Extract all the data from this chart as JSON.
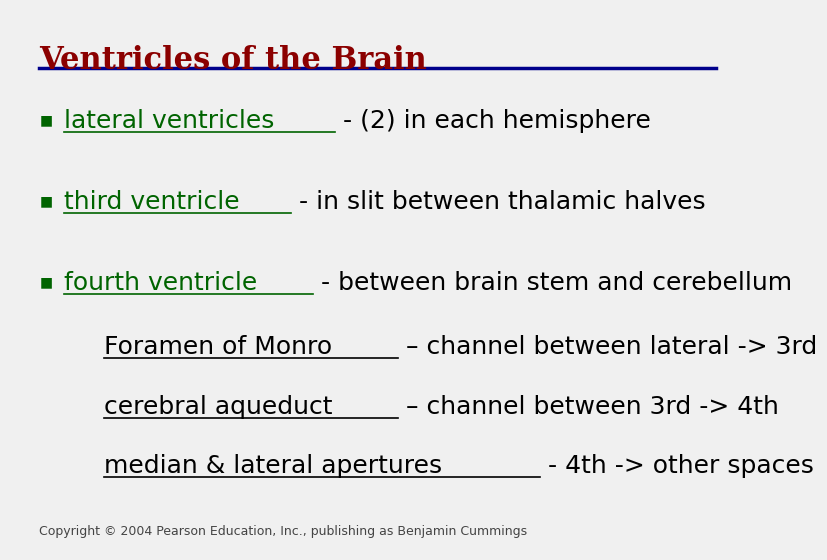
{
  "title": "Ventricles of the Brain",
  "title_color": "#8B0000",
  "title_fontsize": 22,
  "line_color": "#00008B",
  "bullet_color": "#006400",
  "bullet_fontsize": 18,
  "sub_fontsize": 18,
  "copyright_text": "Copyright © 2004 Pearson Education, Inc., publishing as Benjamin Cummings",
  "copyright_fontsize": 9,
  "bg_color": "#F0F0F0",
  "items": [
    {
      "underline_text": "lateral ventricles",
      "rest_text": " - (2) in each hemisphere",
      "ul_color": "#006400",
      "rest_color": "#000000"
    },
    {
      "underline_text": "third ventricle",
      "rest_text": " - in slit between thalamic halves",
      "ul_color": "#006400",
      "rest_color": "#000000"
    },
    {
      "underline_text": "fourth ventricle",
      "rest_text": " - between brain stem and cerebellum",
      "ul_color": "#006400",
      "rest_color": "#000000"
    }
  ],
  "sub_items": [
    {
      "underline_text": "Foramen of Monro",
      "rest_text": " – channel between lateral -> 3rd",
      "ul_color": "#000000",
      "rest_color": "#000000"
    },
    {
      "underline_text": "cerebral aqueduct",
      "rest_text": " – channel between 3rd -> 4th",
      "ul_color": "#000000",
      "rest_color": "#000000"
    },
    {
      "underline_text": "median & lateral apertures",
      "rest_text": " - 4th -> other spaces",
      "ul_color": "#000000",
      "rest_color": "#000000"
    }
  ]
}
